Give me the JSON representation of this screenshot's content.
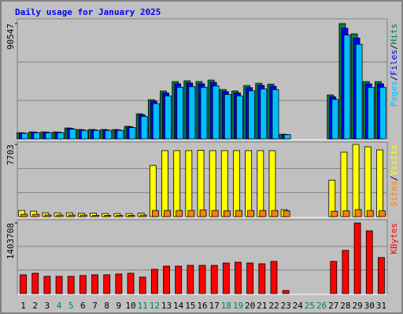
{
  "chart_data": [
    {
      "type": "bar",
      "title": "Daily usage for January 2025",
      "ylim": [
        0,
        90547
      ],
      "yticks": [
        90547
      ],
      "legend_separator": "/",
      "series": [
        {
          "name": "Hits",
          "color": "#008040",
          "values": [
            4900,
            5500,
            5500,
            5500,
            8600,
            7400,
            7400,
            7400,
            7400,
            9900,
            19700,
            30800,
            37600,
            45000,
            45600,
            45000,
            46200,
            38800,
            37600,
            41900,
            43700,
            43000,
            3700,
            0,
            0,
            0,
            34500,
            90547,
            82500,
            45000,
            45000
          ]
        },
        {
          "name": "Files",
          "color": "#0000ff",
          "values": [
            4700,
            5300,
            5300,
            5300,
            8300,
            7100,
            7100,
            7100,
            7100,
            9500,
            19000,
            29600,
            36100,
            43200,
            43800,
            43200,
            44400,
            37200,
            36100,
            40200,
            42000,
            41300,
            3500,
            0,
            0,
            0,
            33100,
            86900,
            79200,
            43200,
            43200
          ]
        },
        {
          "name": "Pages",
          "color": "#00c0ff",
          "values": [
            4400,
            4900,
            4900,
            4900,
            7700,
            6700,
            6700,
            6700,
            6700,
            8900,
            17700,
            27700,
            33800,
            40500,
            41000,
            40500,
            41600,
            34900,
            33800,
            37700,
            39300,
            38700,
            3300,
            0,
            0,
            0,
            31000,
            81500,
            74300,
            40500,
            40500
          ]
        }
      ]
    },
    {
      "type": "bar",
      "ylim": [
        0,
        7703
      ],
      "yticks": [
        7703
      ],
      "legend_separator": "/",
      "series": [
        {
          "name": "Visits",
          "color": "#ffff00",
          "values": [
            660,
            580,
            410,
            410,
            410,
            370,
            370,
            330,
            330,
            330,
            370,
            5460,
            7040,
            7040,
            7040,
            7080,
            7040,
            7040,
            7040,
            7040,
            7040,
            7040,
            750,
            0,
            0,
            0,
            3890,
            6870,
            7703,
            7450,
            7120
          ]
        },
        {
          "name": "Sites",
          "color": "#ff8000",
          "values": [
            250,
            250,
            170,
            170,
            170,
            170,
            130,
            130,
            130,
            130,
            170,
            660,
            660,
            660,
            660,
            710,
            660,
            620,
            660,
            660,
            660,
            660,
            620,
            0,
            0,
            0,
            580,
            620,
            750,
            660,
            620
          ]
        }
      ]
    },
    {
      "type": "bar",
      "ylim": [
        0,
        1403708
      ],
      "yticks": [
        1403708
      ],
      "categories": [
        "1",
        "2",
        "3",
        "4",
        "5",
        "6",
        "7",
        "8",
        "9",
        "10",
        "11",
        "12",
        "13",
        "14",
        "15",
        "16",
        "17",
        "18",
        "19",
        "20",
        "21",
        "22",
        "23",
        "24",
        "25",
        "26",
        "27",
        "28",
        "29",
        "30",
        "31"
      ],
      "category_colors": [
        "#000000",
        "#000000",
        "#000000",
        "#00805c",
        "#00805c",
        "#000000",
        "#000000",
        "#000000",
        "#000000",
        "#000000",
        "#00805c",
        "#00805c",
        "#000000",
        "#000000",
        "#000000",
        "#000000",
        "#000000",
        "#00805c",
        "#00805c",
        "#000000",
        "#000000",
        "#000000",
        "#000000",
        "#000000",
        "#00805c",
        "#00805c",
        "#000000",
        "#000000",
        "#000000",
        "#000000",
        "#000000"
      ],
      "series": [
        {
          "name": "KBytes",
          "color": "#ff0000",
          "values": [
            374000,
            405000,
            343000,
            343000,
            343000,
            359000,
            374000,
            374000,
            390000,
            405000,
            328000,
            483000,
            546000,
            546000,
            561000,
            561000,
            561000,
            608000,
            624000,
            608000,
            593000,
            640000,
            62000,
            0,
            0,
            0,
            640000,
            858000,
            1403708,
            1248000,
            717000
          ]
        }
      ]
    }
  ]
}
